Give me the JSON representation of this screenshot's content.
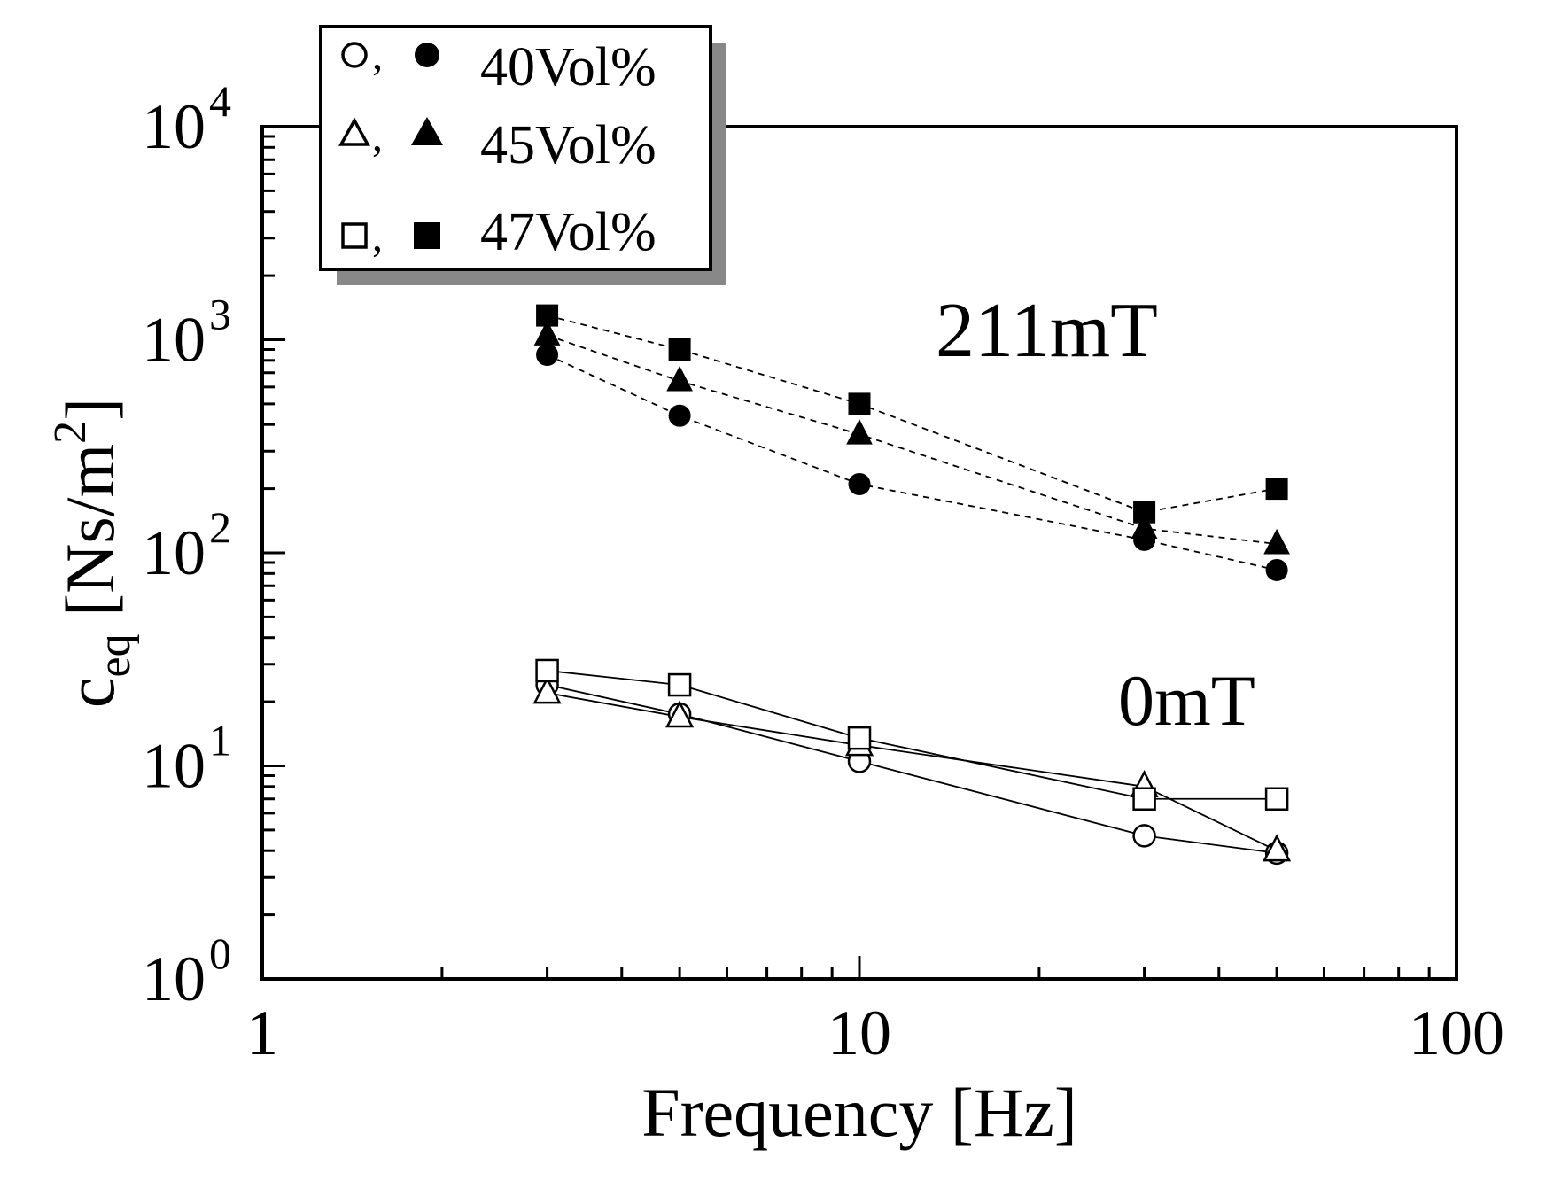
{
  "chart_data": {
    "type": "scatter",
    "xscale": "log",
    "yscale": "log",
    "xlim": [
      1,
      100
    ],
    "ylim": [
      1,
      10000
    ],
    "xlabel": "Frequency [Hz]",
    "ylabel": {
      "main": "c",
      "sub": "eq",
      "units_pre": " [Ns/m",
      "units_sup": "2",
      "units_post": "]"
    },
    "x_ticks": [
      {
        "value": 1,
        "label": "1"
      },
      {
        "value": 10,
        "label": "10"
      },
      {
        "value": 100,
        "label": "100"
      }
    ],
    "y_ticks": [
      {
        "value": 1,
        "base": "10",
        "exp": "0"
      },
      {
        "value": 10,
        "base": "10",
        "exp": "1"
      },
      {
        "value": 100,
        "base": "10",
        "exp": "2"
      },
      {
        "value": 1000,
        "base": "10",
        "exp": "3"
      },
      {
        "value": 10000,
        "base": "10",
        "exp": "4"
      }
    ],
    "annotations": [
      {
        "text": "211mT",
        "x": 15,
        "y": 1000
      },
      {
        "text": "0mT",
        "x": 30,
        "y": 16
      }
    ],
    "legend": {
      "placement": "top-left",
      "entries": [
        {
          "open": "circle",
          "filled": "circle",
          "label": "40Vol%"
        },
        {
          "open": "triangle",
          "filled": "triangle",
          "label": "45Vol%"
        },
        {
          "open": "square",
          "filled": "square",
          "label": "47Vol%"
        }
      ]
    },
    "series": [
      {
        "name": "40Vol% 211mT",
        "marker": "circle",
        "filled": true,
        "line": "dashed",
        "x": [
          3,
          5,
          10,
          30,
          50
        ],
        "y": [
          850,
          440,
          210,
          115,
          83
        ]
      },
      {
        "name": "45Vol% 211mT",
        "marker": "triangle",
        "filled": true,
        "line": "dashed",
        "x": [
          3,
          5,
          10,
          30,
          50
        ],
        "y": [
          1050,
          640,
          360,
          130,
          110
        ]
      },
      {
        "name": "47Vol% 211mT",
        "marker": "square",
        "filled": true,
        "line": "dashed",
        "x": [
          3,
          5,
          10,
          30,
          50
        ],
        "y": [
          1300,
          900,
          500,
          155,
          200
        ]
      },
      {
        "name": "40Vol% 0mT",
        "marker": "circle",
        "filled": false,
        "line": "solid",
        "x": [
          3,
          5,
          10,
          30,
          50
        ],
        "y": [
          24,
          17.5,
          10.5,
          4.7,
          3.9
        ]
      },
      {
        "name": "45Vol% 0mT",
        "marker": "triangle",
        "filled": false,
        "line": "solid",
        "x": [
          3,
          5,
          10,
          30,
          50
        ],
        "y": [
          22,
          17,
          12.5,
          8,
          4
        ]
      },
      {
        "name": "47Vol% 0mT",
        "marker": "square",
        "filled": false,
        "line": "solid",
        "x": [
          3,
          5,
          10,
          30,
          50
        ],
        "y": [
          28,
          24,
          13.5,
          7,
          7
        ]
      }
    ]
  }
}
